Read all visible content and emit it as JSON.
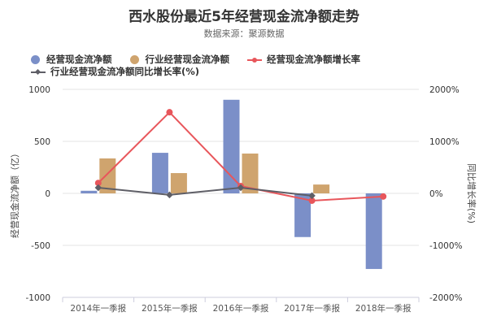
{
  "header": {
    "title": "西水股份最近5年经营现金流净额走势",
    "subtitle": "数据来源：聚源数据"
  },
  "legend": {
    "items": [
      {
        "label": "经营现金流净额",
        "color": "#7b8fc8",
        "symbol": "circle"
      },
      {
        "label": "行业经营现金流净额",
        "color": "#cfa46e",
        "symbol": "circle"
      },
      {
        "label": "经营现金流净额增长率",
        "color": "#e8565b",
        "symbol": "line-circle"
      },
      {
        "label": "行业经营现金流净额同比增长率(%)",
        "color": "#5e5e66",
        "symbol": "line-diamond"
      }
    ]
  },
  "axes": {
    "left_label": "经营现金流净额（亿）",
    "right_label": "同比增长率(%)",
    "left_ticks": [
      "1000",
      "500",
      "0",
      "-500",
      "-1000"
    ],
    "right_ticks": [
      "2000%",
      "1000%",
      "0%",
      "-1000%",
      "-2000%"
    ],
    "x_ticks": [
      "2014年一季报",
      "2015年一季报",
      "2016年一季报",
      "2017年一季报",
      "2018年一季报"
    ]
  },
  "chart_data": {
    "type": "bar",
    "title": "西水股份最近5年经营现金流净额走势",
    "subtitle": "数据来源：聚源数据",
    "categories": [
      "2014年一季报",
      "2015年一季报",
      "2016年一季报",
      "2017年一季报",
      "2018年一季报"
    ],
    "series": [
      {
        "name": "经营现金流净额",
        "type": "bar",
        "axis": "left",
        "color": "#7b8fc8",
        "values": [
          25,
          390,
          900,
          -420,
          -727
        ]
      },
      {
        "name": "行业经营现金流净额",
        "type": "bar",
        "axis": "left",
        "color": "#cfa46e",
        "values": [
          336,
          195,
          383,
          85,
          null
        ]
      },
      {
        "name": "经营现金流净额增长率",
        "type": "line",
        "axis": "right",
        "color": "#e8565b",
        "values": [
          200,
          1560,
          140,
          -140,
          -60
        ]
      },
      {
        "name": "行业经营现金流净额同比增长率(%)",
        "type": "line",
        "axis": "right",
        "color": "#5e5e66",
        "values": [
          110,
          -30,
          110,
          -45,
          null
        ]
      }
    ],
    "xlabel": "",
    "ylabel": "经营现金流净额（亿）",
    "y2label": "同比增长率(%)",
    "ylim": [
      -1000,
      1000
    ],
    "y2lim": [
      -2000,
      2000
    ],
    "grid": true,
    "legend_position": "top-left"
  }
}
